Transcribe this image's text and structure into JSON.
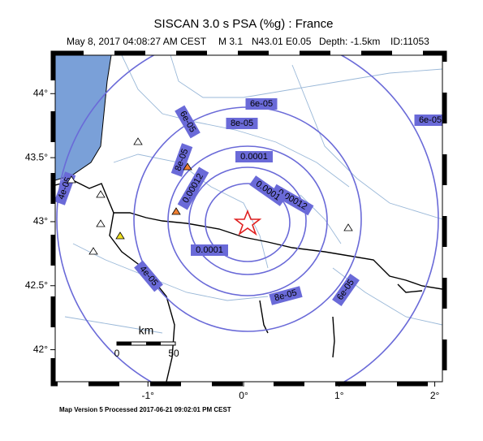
{
  "title": "SISCAN 3.0 s PSA (%g) : France",
  "subtitle": {
    "date": "May  8, 2017 04:08:27 AM CEST",
    "magnitude": "M 3.1",
    "location": "N43.01 E0.05",
    "depth": "Depth: -1.5km",
    "id": "ID:11053"
  },
  "map": {
    "xlim": [
      -1.97,
      2.08
    ],
    "ylim": [
      41.75,
      44.3
    ],
    "xticks": [
      {
        "value": -1,
        "label": "-1°"
      },
      {
        "value": 0,
        "label": "0°"
      },
      {
        "value": 1,
        "label": "1°"
      },
      {
        "value": 2,
        "label": "2°"
      }
    ],
    "yticks": [
      {
        "value": 44,
        "label": "44°"
      },
      {
        "value": 43.5,
        "label": "43.5°"
      },
      {
        "value": 43,
        "label": "43°"
      },
      {
        "value": 42.5,
        "label": "42.5°"
      },
      {
        "value": 42,
        "label": "42°"
      }
    ]
  },
  "contour_labels": [
    "6e-05",
    "6e-05",
    "8e-05",
    "8e-05",
    "0.0001",
    "0.00012",
    "0.00012",
    "0.0001",
    "0.0001",
    "8e-05",
    "6e-05",
    "6e-05",
    "4e-05",
    "4e-05"
  ],
  "scale_bar": {
    "unit": "km",
    "labels": [
      "0",
      "50"
    ]
  },
  "footer": "Map Version 5 Processed 2017-06-21 09:02:01 PM CEST"
}
